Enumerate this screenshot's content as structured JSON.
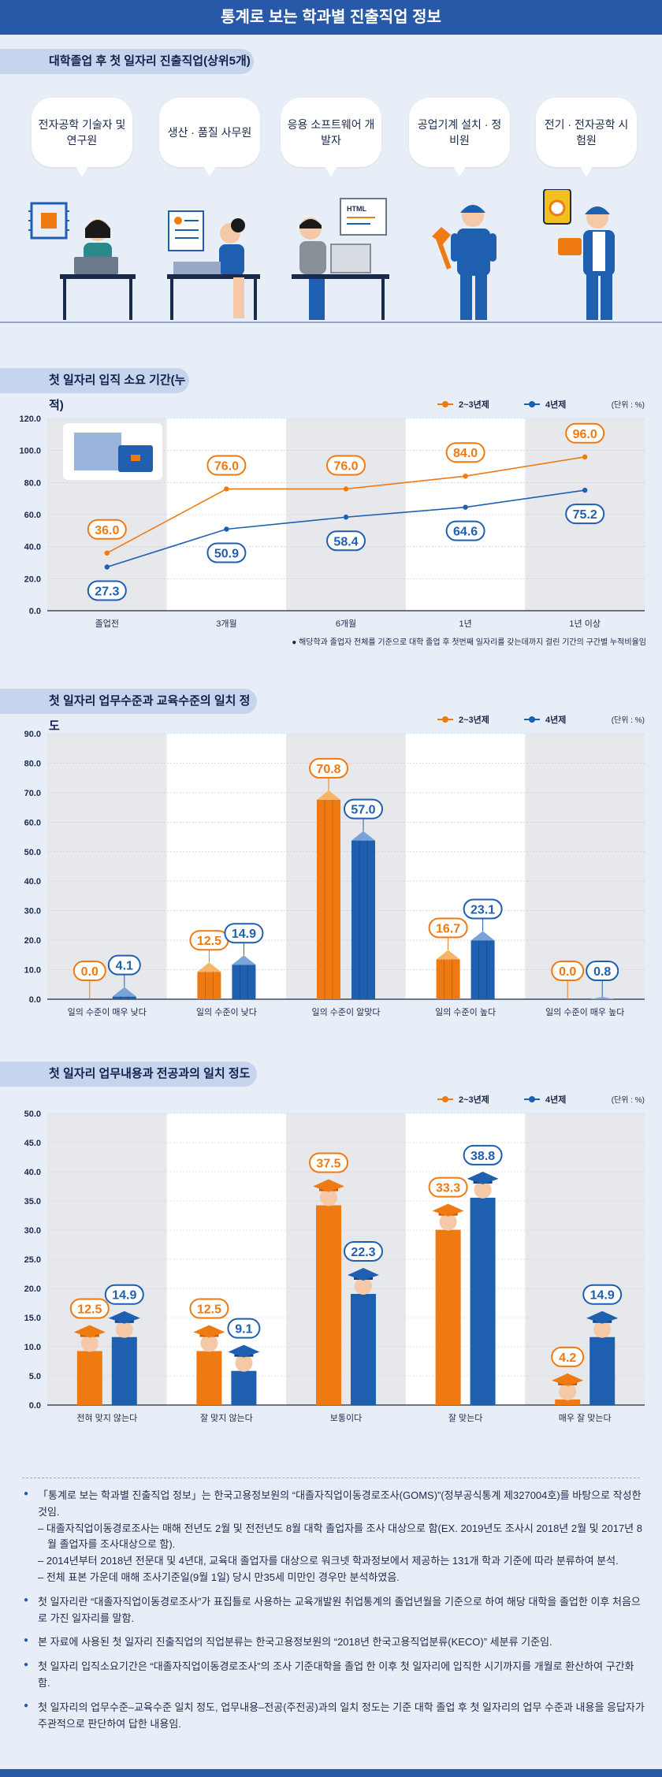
{
  "header": {
    "title": "통계로 보는 학과별 진출직업 정보"
  },
  "section1": {
    "title": "대학졸업 후 첫 일자리 진출직업(상위5개)",
    "jobs": [
      "전자공학 기술자 및 연구원",
      "생산 · 품질 사무원",
      "응용 소프트웨어 개발자",
      "공업기계 설치 · 정비원",
      "전기 · 전자공학 시험원"
    ],
    "monitor_text": "HTML"
  },
  "colors": {
    "orange": "#f07a12",
    "blue": "#1f5fb0",
    "grid_shade": "#e6e8ec",
    "header": "#2858a8"
  },
  "section2": {
    "title": "첫 일자리 입직 소요 기간(누적)",
    "unit": "(단위 : %)",
    "footnote": "● 해당학과 졸업자 전체를 기준으로 대학 졸업 후 첫번째 일자리를 갖는데까지 걸린 기간의 구간별 누적비율임"
  },
  "section3": {
    "title": "첫 일자리 업무수준과 교육수준의 일치 정도",
    "unit": "(단위 : %)"
  },
  "section4": {
    "title": "첫 일자리 업무내용과 전공과의 일치 정도",
    "unit": "(단위 : %)"
  },
  "chart_data": [
    {
      "type": "line",
      "title": "첫 일자리 입직 소요 기간(누적)",
      "categories": [
        "졸업전",
        "3개월",
        "6개월",
        "1년",
        "1년 이상"
      ],
      "series": [
        {
          "name": "2~3년제",
          "values": [
            36.0,
            76.0,
            76.0,
            84.0,
            96.0
          ]
        },
        {
          "name": "4년제",
          "values": [
            27.3,
            50.9,
            58.4,
            64.6,
            75.2
          ]
        }
      ],
      "ylim": [
        0,
        120
      ],
      "yticks": [
        "0.0",
        "20.0",
        "40.0",
        "60.0",
        "80.0",
        "100.0",
        "120.0"
      ],
      "legend": "top-right"
    },
    {
      "type": "bar",
      "title": "첫 일자리 업무수준과 교육수준의 일치 정도",
      "categories": [
        "일의 수준이 매우 낮다",
        "일의 수준이 낮다",
        "일의 수준이 알맞다",
        "일의 수준이 높다",
        "일의 수준이 매우 높다"
      ],
      "series": [
        {
          "name": "2~3년제",
          "values": [
            0.0,
            12.5,
            70.8,
            16.7,
            0.0
          ]
        },
        {
          "name": "4년제",
          "values": [
            4.1,
            14.9,
            57.0,
            23.1,
            0.8
          ]
        }
      ],
      "ylim": [
        0,
        90
      ],
      "yticks": [
        "0.0",
        "10.0",
        "20.0",
        "30.0",
        "40.0",
        "50.0",
        "60.0",
        "70.0",
        "80.0",
        "90.0"
      ],
      "legend": "top-right"
    },
    {
      "type": "bar",
      "title": "첫 일자리 업무내용과 전공과의 일치 정도",
      "categories": [
        "전혀 맞지 않는다",
        "잘 맞지 않는다",
        "보통이다",
        "잘 맞는다",
        "매우 잘 맞는다"
      ],
      "series": [
        {
          "name": "2~3년제",
          "values": [
            12.5,
            12.5,
            37.5,
            33.3,
            4.2
          ]
        },
        {
          "name": "4년제",
          "values": [
            14.9,
            9.1,
            22.3,
            38.8,
            14.9
          ]
        }
      ],
      "ylim": [
        0,
        50
      ],
      "yticks": [
        "0.0",
        "5.0",
        "10.0",
        "15.0",
        "20.0",
        "25.0",
        "30.0",
        "35.0",
        "40.0",
        "45.0",
        "50.0"
      ],
      "legend": "top-right"
    }
  ],
  "notes": [
    {
      "text": "「통계로 보는 학과별 진출직업 정보」는 한국고용정보원의 “대졸자직업이동경로조사(GOMS)”(정부공식통계 제327004호)를 바탕으로 작성한 것임.",
      "subs": [
        "– 대졸자직업이동경로조사는 매해 전년도 2월 및 전전년도 8월 대학 졸업자를 조사 대상으로 함(EX. 2019년도 조사시 2018년 2월 및 2017년 8월 졸업자를 조사대상으로 함).",
        "– 2014년부터 2018년 전문대 및 4년대, 교육대 졸업자를 대상으로 워크넷 학과정보에서 제공하는 131개 학과 기준에 따라 분류하여 분석.",
        "– 전체 표본 가운데 매해 조사기준일(9월 1일) 당시 만35세 미만인 경우만 분석하였음."
      ]
    },
    {
      "text": "첫 일자리란 “대졸자직업이동경로조사”가 표집틀로 사용하는 교육개발원 취업통계의 졸업년월을 기준으로 하여 해당 대학을 졸업한 이후 처음으로 가진 일자리를 말함.",
      "subs": []
    },
    {
      "text": "본 자료에 사용된 첫 일자리 진출직업의 직업분류는 한국고용정보원의 “2018년 한국고용직업분류(KECO)” 세분류 기준임.",
      "subs": []
    },
    {
      "text": "첫 일자리 입직소요기간은 “대졸자직업이동경로조사”의 조사 기준대학을 졸업 한 이후 첫 일자리에 입직한 시기까지를 개월로 환산하여 구간화함.",
      "subs": []
    },
    {
      "text": "첫 일자리의 업무수준–교육수준 일치 정도, 업무내용–전공(주전공)과의 일치 정도는 기준 대학 졸업 후 첫 일자리의 업무 수준과 내용을 응답자가 주관적으로 판단하여 답한 내용임.",
      "subs": []
    }
  ]
}
